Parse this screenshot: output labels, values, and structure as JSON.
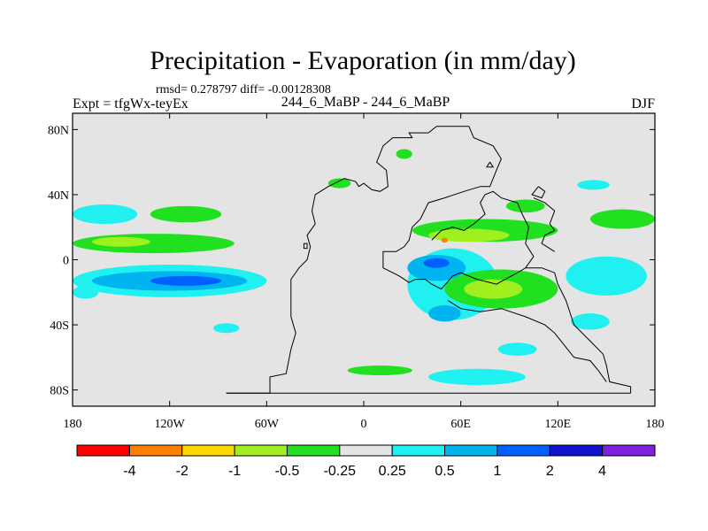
{
  "chart_data": {
    "type": "heatmap",
    "title": "Precipitation - Evaporation (in mm/day)",
    "stats_line": "rmsd= 0.278797 diff= -0.00128308",
    "left_label": "Expt = tfgWx-teyEx",
    "center_label": "244_6_MaBP - 244_6_MaBP",
    "right_label": "DJF",
    "x_ticks": [
      "180",
      "120W",
      "60W",
      "0",
      "60E",
      "120E",
      "180"
    ],
    "y_ticks": [
      "80N",
      "40N",
      "0",
      "40S",
      "80S"
    ],
    "xlim": [
      -180,
      180
    ],
    "ylim": [
      -90,
      90
    ],
    "colorbar": {
      "colors": [
        "#ff0000",
        "#ff8000",
        "#ffd800",
        "#a0f020",
        "#20e020",
        "#e4e4e4",
        "#20f0f0",
        "#00b4f0",
        "#0060ff",
        "#1010d0",
        "#8020e0"
      ],
      "labels": [
        "-4",
        "-2",
        "-1",
        "-0.5",
        "-0.25",
        "0.25",
        "0.5",
        "1",
        "2",
        "4"
      ]
    },
    "background_color": "#e4e4e4",
    "regions": [
      {
        "name": "pacific-equatorial-cyan",
        "category": "0.5",
        "color": "#20f0f0",
        "lon": -120,
        "lat": -13,
        "rx_deg": 60,
        "ry_deg": 10
      },
      {
        "name": "pacific-equatorial-light-blue",
        "category": "1",
        "color": "#00b4f0",
        "lon": -120,
        "lat": -13,
        "rx_deg": 48,
        "ry_deg": 6
      },
      {
        "name": "pacific-equatorial-blue",
        "category": "2",
        "color": "#0060ff",
        "lon": -110,
        "lat": -13,
        "rx_deg": 22,
        "ry_deg": 3
      },
      {
        "name": "pacific-north-green",
        "category": "-0.25",
        "color": "#20e020",
        "lon": -130,
        "lat": 10,
        "rx_deg": 50,
        "ry_deg": 6
      },
      {
        "name": "pacific-north-lightgreen",
        "category": "-0.5",
        "color": "#a0f020",
        "lon": -150,
        "lat": 11,
        "rx_deg": 18,
        "ry_deg": 3
      },
      {
        "name": "pacific-nw-cyan",
        "category": "0.5",
        "color": "#20f0f0",
        "lon": -160,
        "lat": 28,
        "rx_deg": 20,
        "ry_deg": 6
      },
      {
        "name": "pacific-nw-green",
        "category": "-0.25",
        "color": "#20e020",
        "lon": -110,
        "lat": 28,
        "rx_deg": 22,
        "ry_deg": 5
      },
      {
        "name": "pacific-sw-cyan",
        "category": "0.5",
        "color": "#20f0f0",
        "lon": -172,
        "lat": -20,
        "rx_deg": 8,
        "ry_deg": 4
      },
      {
        "name": "pacific-south-cyan",
        "category": "0.5",
        "color": "#20f0f0",
        "lon": -85,
        "lat": -42,
        "rx_deg": 8,
        "ry_deg": 3
      },
      {
        "name": "atlantic-north-green",
        "category": "-0.25",
        "color": "#20e020",
        "lon": -15,
        "lat": 47,
        "rx_deg": 7,
        "ry_deg": 3
      },
      {
        "name": "indian-ocean-cyan",
        "category": "0.5",
        "color": "#20f0f0",
        "lon": 55,
        "lat": -15,
        "rx_deg": 28,
        "ry_deg": 22
      },
      {
        "name": "indian-ocean-blue",
        "category": "1",
        "color": "#00b4f0",
        "lon": 45,
        "lat": -5,
        "rx_deg": 18,
        "ry_deg": 8
      },
      {
        "name": "indian-ocean-darkblue",
        "category": "2",
        "color": "#0060ff",
        "lon": 45,
        "lat": -2,
        "rx_deg": 8,
        "ry_deg": 3
      },
      {
        "name": "indian-south-blue",
        "category": "1",
        "color": "#00b4f0",
        "lon": 50,
        "lat": -33,
        "rx_deg": 10,
        "ry_deg": 5
      },
      {
        "name": "indian-central-green",
        "category": "-0.25",
        "color": "#20e020",
        "lon": 85,
        "lat": -18,
        "rx_deg": 35,
        "ry_deg": 12
      },
      {
        "name": "indian-central-lightgreen",
        "category": "-0.5",
        "color": "#a0f020",
        "lon": 80,
        "lat": -18,
        "rx_deg": 18,
        "ry_deg": 6
      },
      {
        "name": "asia-green",
        "category": "-0.25",
        "color": "#20e020",
        "lon": 75,
        "lat": 18,
        "rx_deg": 45,
        "ry_deg": 7
      },
      {
        "name": "asia-lightgreen",
        "category": "-0.5",
        "color": "#a0f020",
        "lon": 65,
        "lat": 15,
        "rx_deg": 25,
        "ry_deg": 4
      },
      {
        "name": "asia-orange-spot",
        "category": "-2",
        "color": "#ff8000",
        "lon": 50,
        "lat": 12,
        "rx_deg": 2,
        "ry_deg": 1.5
      },
      {
        "name": "north-asia-green",
        "category": "-0.25",
        "color": "#20e020",
        "lon": 100,
        "lat": 33,
        "rx_deg": 12,
        "ry_deg": 4
      },
      {
        "name": "west-pacific-green",
        "category": "-0.25",
        "color": "#20e020",
        "lon": 160,
        "lat": 25,
        "rx_deg": 20,
        "ry_deg": 6
      },
      {
        "name": "west-pacific-cyan",
        "category": "0.5",
        "color": "#20f0f0",
        "lon": 150,
        "lat": -10,
        "rx_deg": 25,
        "ry_deg": 12
      },
      {
        "name": "south-pacific-cyan-2",
        "category": "0.5",
        "color": "#20f0f0",
        "lon": 140,
        "lat": -38,
        "rx_deg": 12,
        "ry_deg": 5
      },
      {
        "name": "southern-ocean-cyan",
        "category": "0.5",
        "color": "#20f0f0",
        "lon": 70,
        "lat": -72,
        "rx_deg": 30,
        "ry_deg": 5
      },
      {
        "name": "southern-ocean-green",
        "category": "-0.25",
        "color": "#20e020",
        "lon": 10,
        "lat": -68,
        "rx_deg": 20,
        "ry_deg": 3
      },
      {
        "name": "southern-ocean-cyan-2",
        "category": "0.5",
        "color": "#20f0f0",
        "lon": 95,
        "lat": -55,
        "rx_deg": 12,
        "ry_deg": 4
      },
      {
        "name": "north-cyan-far",
        "category": "0.5",
        "color": "#20f0f0",
        "lon": 142,
        "lat": 46,
        "rx_deg": 10,
        "ry_deg": 3
      },
      {
        "name": "arctic-green",
        "category": "-0.25",
        "color": "#20e020",
        "lon": 25,
        "lat": 65,
        "rx_deg": 5,
        "ry_deg": 3
      }
    ],
    "coastlines": [
      {
        "name": "pangaea-west-coast",
        "points": [
          [
            -85,
            -82
          ],
          [
            -58,
            -82
          ],
          [
            -58,
            -72
          ],
          [
            -48,
            -70
          ],
          [
            -45,
            -55
          ],
          [
            -42,
            -45
          ],
          [
            -45,
            -35
          ],
          [
            -45,
            -20
          ],
          [
            -45,
            -12
          ],
          [
            -40,
            -5
          ],
          [
            -35,
            0
          ],
          [
            -33,
            8
          ],
          [
            -35,
            15
          ],
          [
            -30,
            22
          ],
          [
            -32,
            30
          ],
          [
            -30,
            40
          ],
          [
            -22,
            45
          ],
          [
            -12,
            50
          ],
          [
            -5,
            48
          ],
          [
            -3,
            45
          ]
        ]
      },
      {
        "name": "west-isle",
        "points": [
          [
            -37,
            10
          ],
          [
            -35,
            10
          ],
          [
            -35,
            7
          ],
          [
            -37,
            7
          ],
          [
            -37,
            10
          ]
        ]
      },
      {
        "name": "pangaea-north",
        "points": [
          [
            -3,
            45
          ],
          [
            0,
            47
          ],
          [
            5,
            43
          ],
          [
            10,
            42
          ],
          [
            15,
            45
          ],
          [
            14,
            55
          ],
          [
            8,
            60
          ],
          [
            10,
            65
          ],
          [
            12,
            70
          ],
          [
            18,
            75
          ],
          [
            30,
            75
          ],
          [
            28,
            78
          ],
          [
            40,
            78
          ],
          [
            45,
            82
          ],
          [
            65,
            82
          ],
          [
            68,
            75
          ],
          [
            80,
            70
          ],
          [
            85,
            62
          ],
          [
            82,
            55
          ],
          [
            78,
            45
          ],
          [
            72,
            45
          ]
        ]
      },
      {
        "name": "tethys-coast",
        "points": [
          [
            72,
            45
          ],
          [
            62,
            42
          ],
          [
            50,
            38
          ],
          [
            40,
            35
          ],
          [
            35,
            25
          ],
          [
            30,
            20
          ],
          [
            28,
            12
          ],
          [
            25,
            8
          ],
          [
            20,
            5
          ],
          [
            12,
            5
          ],
          [
            12,
            -5
          ],
          [
            18,
            -8
          ],
          [
            22,
            -10
          ],
          [
            25,
            -12
          ],
          [
            28,
            -14
          ],
          [
            32,
            -12
          ],
          [
            38,
            -12
          ],
          [
            42,
            -15
          ],
          [
            48,
            -18
          ],
          [
            55,
            -10
          ],
          [
            60,
            -8
          ],
          [
            70,
            -12
          ],
          [
            82,
            -15
          ],
          [
            95,
            -8
          ],
          [
            100,
            -5
          ],
          [
            110,
            -5
          ],
          [
            118,
            -8
          ]
        ]
      },
      {
        "name": "east-pangaea",
        "points": [
          [
            118,
            -8
          ],
          [
            120,
            -15
          ],
          [
            125,
            -25
          ],
          [
            130,
            -40
          ],
          [
            140,
            -50
          ],
          [
            148,
            -58
          ],
          [
            150,
            -65
          ],
          [
            152,
            -75
          ],
          [
            165,
            -78
          ],
          [
            165,
            -82
          ]
        ]
      },
      {
        "name": "south-pangaea",
        "points": [
          [
            165,
            -82
          ],
          [
            -85,
            -82
          ]
        ]
      },
      {
        "name": "south-gondwana",
        "points": [
          [
            52,
            -25
          ],
          [
            60,
            -30
          ],
          [
            72,
            -32
          ],
          [
            85,
            -30
          ],
          [
            100,
            -35
          ],
          [
            112,
            -40
          ],
          [
            118,
            -45
          ],
          [
            130,
            -60
          ],
          [
            140,
            -62
          ],
          [
            145,
            -68
          ],
          [
            150,
            -75
          ]
        ]
      },
      {
        "name": "asia-block-1",
        "points": [
          [
            42,
            12
          ],
          [
            48,
            18
          ],
          [
            55,
            20
          ],
          [
            62,
            18
          ],
          [
            68,
            22
          ],
          [
            75,
            28
          ],
          [
            72,
            35
          ],
          [
            75,
            40
          ],
          [
            80,
            42
          ],
          [
            85,
            38
          ],
          [
            95,
            35
          ],
          [
            98,
            28
          ],
          [
            102,
            20
          ],
          [
            100,
            10
          ],
          [
            105,
            2
          ],
          [
            100,
            -5
          ]
        ]
      },
      {
        "name": "asia-block-2",
        "points": [
          [
            105,
            38
          ],
          [
            112,
            35
          ],
          [
            118,
            30
          ],
          [
            115,
            22
          ],
          [
            118,
            18
          ],
          [
            112,
            15
          ],
          [
            110,
            10
          ],
          [
            118,
            5
          ]
        ]
      },
      {
        "name": "north-china",
        "points": [
          [
            108,
            45
          ],
          [
            112,
            42
          ],
          [
            110,
            38
          ],
          [
            104,
            40
          ],
          [
            108,
            45
          ]
        ]
      },
      {
        "name": "arctic-isle",
        "points": [
          [
            78,
            60
          ],
          [
            80,
            57
          ],
          [
            76,
            57
          ],
          [
            78,
            60
          ]
        ]
      }
    ]
  }
}
